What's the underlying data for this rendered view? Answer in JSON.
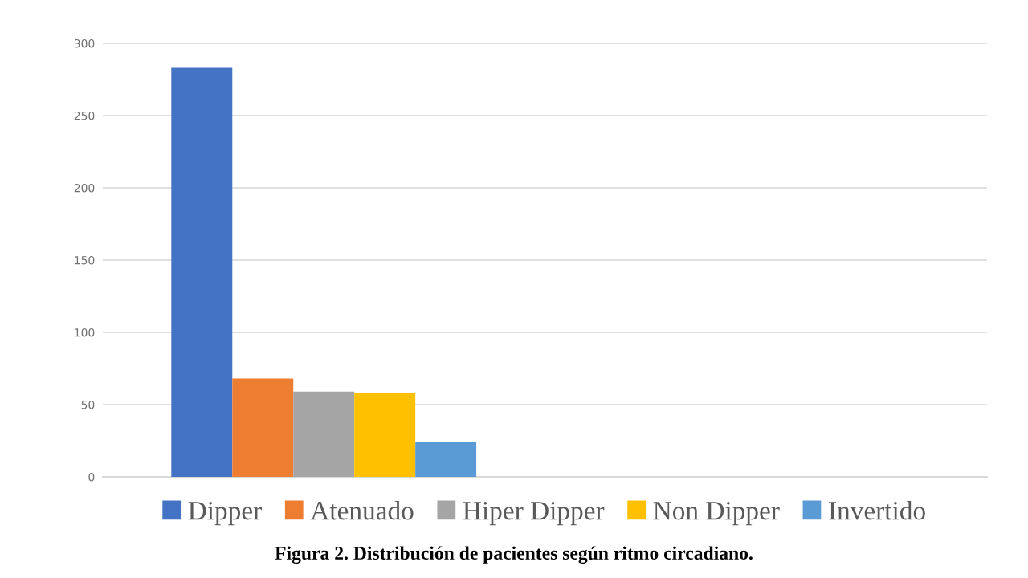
{
  "chart_data": {
    "type": "bar",
    "categories": [
      null,
      null
    ],
    "series": [
      {
        "name": "Dipper",
        "color": "#4472c4",
        "values": [
          283,
          null
        ]
      },
      {
        "name": "Atenuado",
        "color": "#ed7d31",
        "values": [
          68,
          null
        ]
      },
      {
        "name": "Hiper Dipper",
        "color": "#a5a5a5",
        "values": [
          59,
          null
        ]
      },
      {
        "name": "Non Dipper",
        "color": "#ffc000",
        "values": [
          58,
          null
        ]
      },
      {
        "name": "Invertido",
        "color": "#5b9bd5",
        "values": [
          24,
          null
        ]
      }
    ],
    "ylim": [
      0,
      300
    ],
    "yticks": [
      0,
      50,
      100,
      150,
      200,
      250,
      300
    ],
    "grid": "y",
    "legend": "bottom",
    "annotations": [
      "Figura 2. Distribución de pacientes según ritmo circadiano."
    ]
  }
}
